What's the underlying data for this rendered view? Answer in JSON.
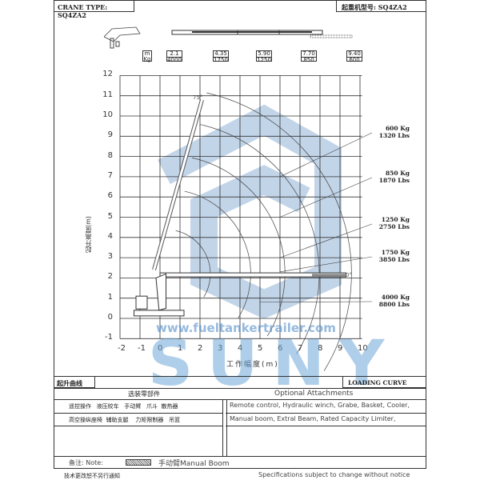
{
  "header": {
    "crane_type_en": "CRANE TYPE: SQ4ZA2",
    "crane_type_cn": "起重机型号: SQ4ZA2"
  },
  "reach_table": {
    "unit_m": "m",
    "unit_kg": "Kg",
    "cols": [
      {
        "m": "2.1",
        "kg": "4000"
      },
      {
        "m": "4.35",
        "kg": "1750"
      },
      {
        "m": "5.90",
        "kg": "1250"
      },
      {
        "m": "7.70",
        "kg": "850"
      },
      {
        "m": "9.40",
        "kg": "600"
      }
    ]
  },
  "chart": {
    "ylabel": "起升高度(m)",
    "xlabel": "工作幅度(m)",
    "xticks": [
      "-2",
      "-1",
      "0",
      "1",
      "2",
      "3",
      "4",
      "5",
      "6",
      "7",
      "8",
      "9",
      "10"
    ],
    "yticks": [
      "12",
      "11",
      "10",
      "9",
      "8",
      "7",
      "6",
      "5",
      "4",
      "3",
      "2",
      "1",
      "0",
      "-1"
    ],
    "angle_top": "75°",
    "angle_flat": "0°",
    "loads": [
      {
        "kg": "600 Kg",
        "lbs": "1320 Lbs"
      },
      {
        "kg": "850 Kg",
        "lbs": "1870 Lbs"
      },
      {
        "kg": "1250 Kg",
        "lbs": "2750 Lbs"
      },
      {
        "kg": "1750 Kg",
        "lbs": "3850 Lbs"
      },
      {
        "kg": "4000 Kg",
        "lbs": "8800 Lbs"
      }
    ]
  },
  "watermark": {
    "url": "www.fueltankertrailer.com",
    "logo": "SUNY"
  },
  "footer": {
    "title_cn": "起升曲线",
    "title_en": "LOADING CURVE",
    "opt_cn": "选装零部件",
    "opt_en": "Optional Attachments",
    "cn_row1": "遥控操作   液压绞车   手动臂   爪斗  散热器",
    "cn_row2": "高空操纵座椅  辅助支腿    力矩限制器   吊篮",
    "en_row1": "Remote control, Hydraulic winch, Grabe, Basket, Cooler,",
    "en_row2": "Manual boom, Extral Beam, Rated Capacity Limiter,",
    "note_label": "备注: Note:",
    "note_text": "手动臂Manual Boom",
    "bottom_cn": "技术更改恕不另行通知",
    "bottom_en": "Specifications subject to change without notice"
  }
}
